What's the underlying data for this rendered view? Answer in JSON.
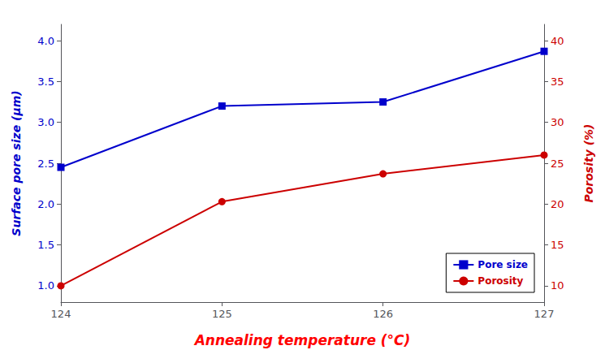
{
  "chart_data": {
    "type": "line",
    "x": [
      124,
      125,
      126,
      127
    ],
    "xlabel": "Annealing temperature (°C)",
    "ylabel": "Surface pore size (μm)",
    "y2label": "Porosity (%)",
    "xlim": [
      124,
      127
    ],
    "xticks": [
      124,
      125,
      126,
      127
    ],
    "ylim": [
      0.8,
      4.2
    ],
    "yticks": [
      {
        "value": 1.0,
        "label": "1.0"
      },
      1.5,
      {
        "value": 2.0,
        "label": "2.0"
      },
      2.5,
      {
        "value": 3.0,
        "label": "3.0"
      },
      3.5,
      {
        "value": 4.0,
        "label": "4.0"
      }
    ],
    "y2lim": [
      8,
      42
    ],
    "y2ticks": [
      10,
      15,
      20,
      25,
      30,
      35,
      40
    ],
    "grid": false,
    "legend": "lower right",
    "series": [
      {
        "name": "Pore size",
        "color": "#0000cc",
        "marker": "square",
        "values": [
          2.45,
          3.2,
          3.25,
          3.87
        ]
      },
      {
        "name": "Porosity",
        "color": "#cc0000",
        "marker": "circle",
        "axis": "y2",
        "values": [
          10.0,
          20.3,
          23.7,
          26.0
        ]
      }
    ]
  }
}
